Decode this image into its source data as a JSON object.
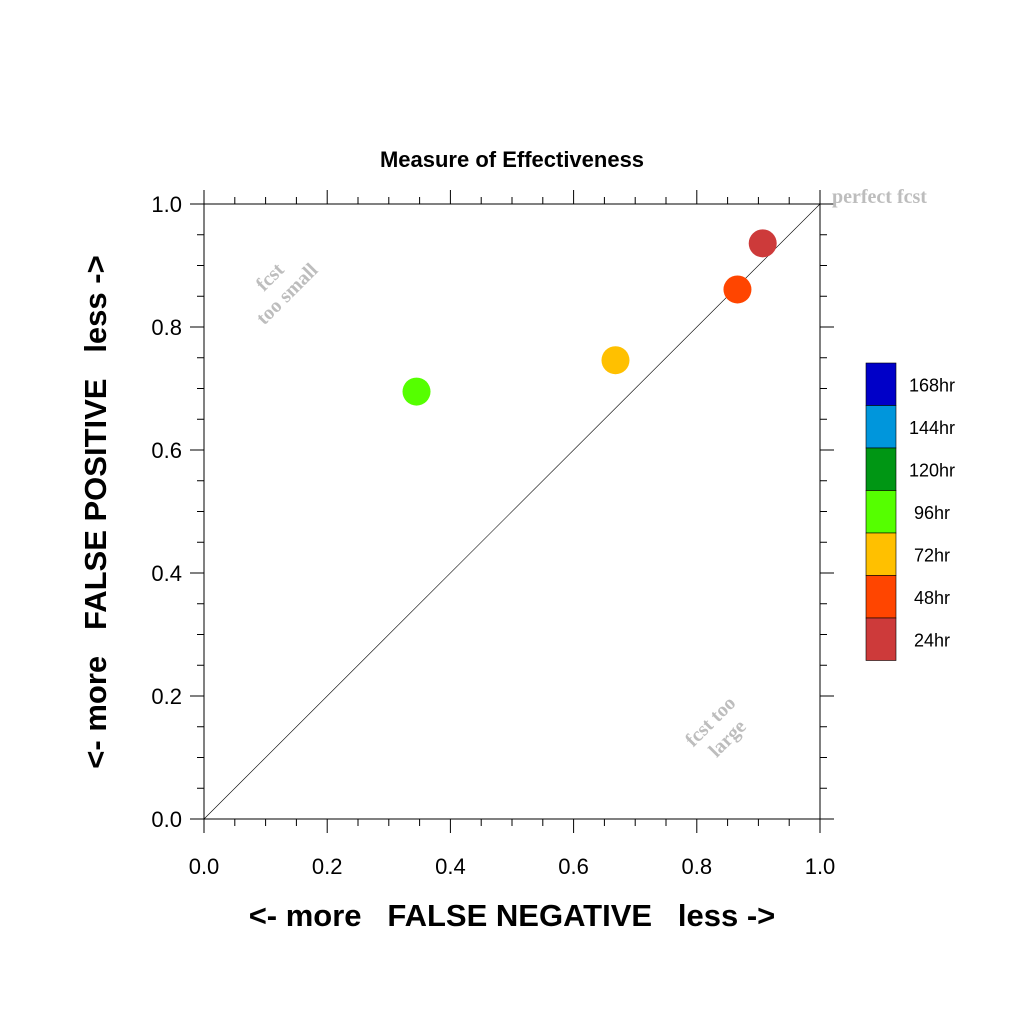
{
  "chart_data": {
    "type": "scatter",
    "title": "Measure of Effectiveness",
    "xlabel": "<- more   FALSE NEGATIVE   less ->",
    "ylabel": "<- more   FALSE POSITIVE   less ->",
    "xlim": [
      0.0,
      1.0
    ],
    "ylim": [
      0.0,
      1.0
    ],
    "x_ticks": [
      "0.0",
      "0.2",
      "0.4",
      "0.6",
      "0.8",
      "1.0"
    ],
    "y_ticks": [
      "0.0",
      "0.2",
      "0.4",
      "0.6",
      "0.8",
      "1.0"
    ],
    "grid": false,
    "diagonal_reference_line": true,
    "annotations": {
      "top_right": "perfect fcst",
      "upper_left_line1": "fcst",
      "upper_left_line2": "too small",
      "lower_right_line1": "fcst too",
      "lower_right_line2": "large"
    },
    "points": [
      {
        "label": "96hr",
        "x": 0.345,
        "y": 0.695,
        "color": "#55ff00"
      },
      {
        "label": "72hr",
        "x": 0.668,
        "y": 0.746,
        "color": "#ffc000"
      },
      {
        "label": "48hr",
        "x": 0.866,
        "y": 0.861,
        "color": "#ff4500"
      },
      {
        "label": "24hr",
        "x": 0.907,
        "y": 0.936,
        "color": "#cd3a3a"
      }
    ],
    "legend": {
      "placement": "right",
      "entries": [
        {
          "label": "168hr",
          "color": "#0000c8"
        },
        {
          "label": "144hr",
          "color": "#0096dc"
        },
        {
          "label": "120hr",
          "color": "#009614"
        },
        {
          "label": "96hr",
          "color": "#55ff00"
        },
        {
          "label": "72hr",
          "color": "#ffc000"
        },
        {
          "label": "48hr",
          "color": "#ff4500"
        },
        {
          "label": "24hr",
          "color": "#cd3a3a"
        }
      ]
    }
  }
}
